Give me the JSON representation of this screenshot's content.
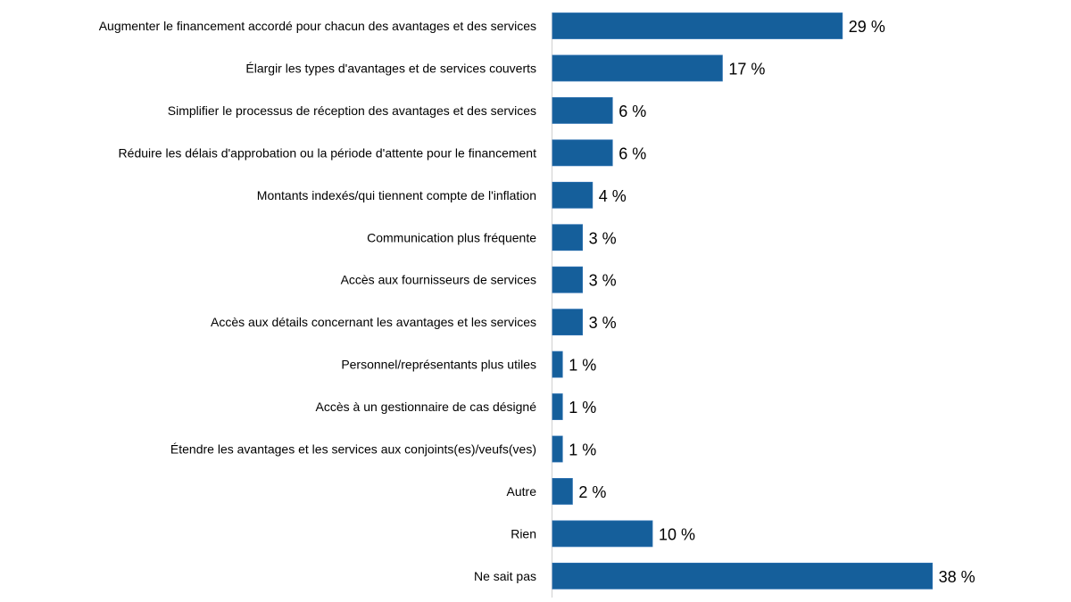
{
  "chart_data": {
    "type": "bar",
    "orientation": "horizontal",
    "title": "",
    "xlabel": "",
    "ylabel": "",
    "xlim": [
      0,
      40
    ],
    "grid": false,
    "value_suffix": " %",
    "bar_color": "#155F9B",
    "categories": [
      "Augmenter le financement accordé pour chacun des avantages et des services",
      "Élargir les types d'avantages et de services couverts",
      "Simplifier le processus de réception des avantages et des services",
      "Réduire les délais d'approbation ou la période d'attente pour le financement",
      "Montants indexés/qui tiennent compte de l'inflation",
      "Communication plus fréquente",
      "Accès aux fournisseurs de services",
      "Accès aux détails concernant les avantages et les services",
      "Personnel/représentants plus utiles",
      "Accès à un gestionnaire de cas désigné",
      "Étendre les avantages et les services aux conjoints(es)/veufs(ves)",
      "Autre",
      "Rien",
      "Ne sait pas"
    ],
    "values": [
      29,
      17,
      6,
      6,
      4,
      3,
      3,
      3,
      1,
      1,
      1,
      2,
      10,
      38
    ],
    "value_labels": [
      "29 %",
      "17 %",
      "6 %",
      "6 %",
      "4 %",
      "3 %",
      "3 %",
      "3 %",
      "1 %",
      "1 %",
      "1 %",
      "2 %",
      "10 %",
      "38 %"
    ]
  }
}
